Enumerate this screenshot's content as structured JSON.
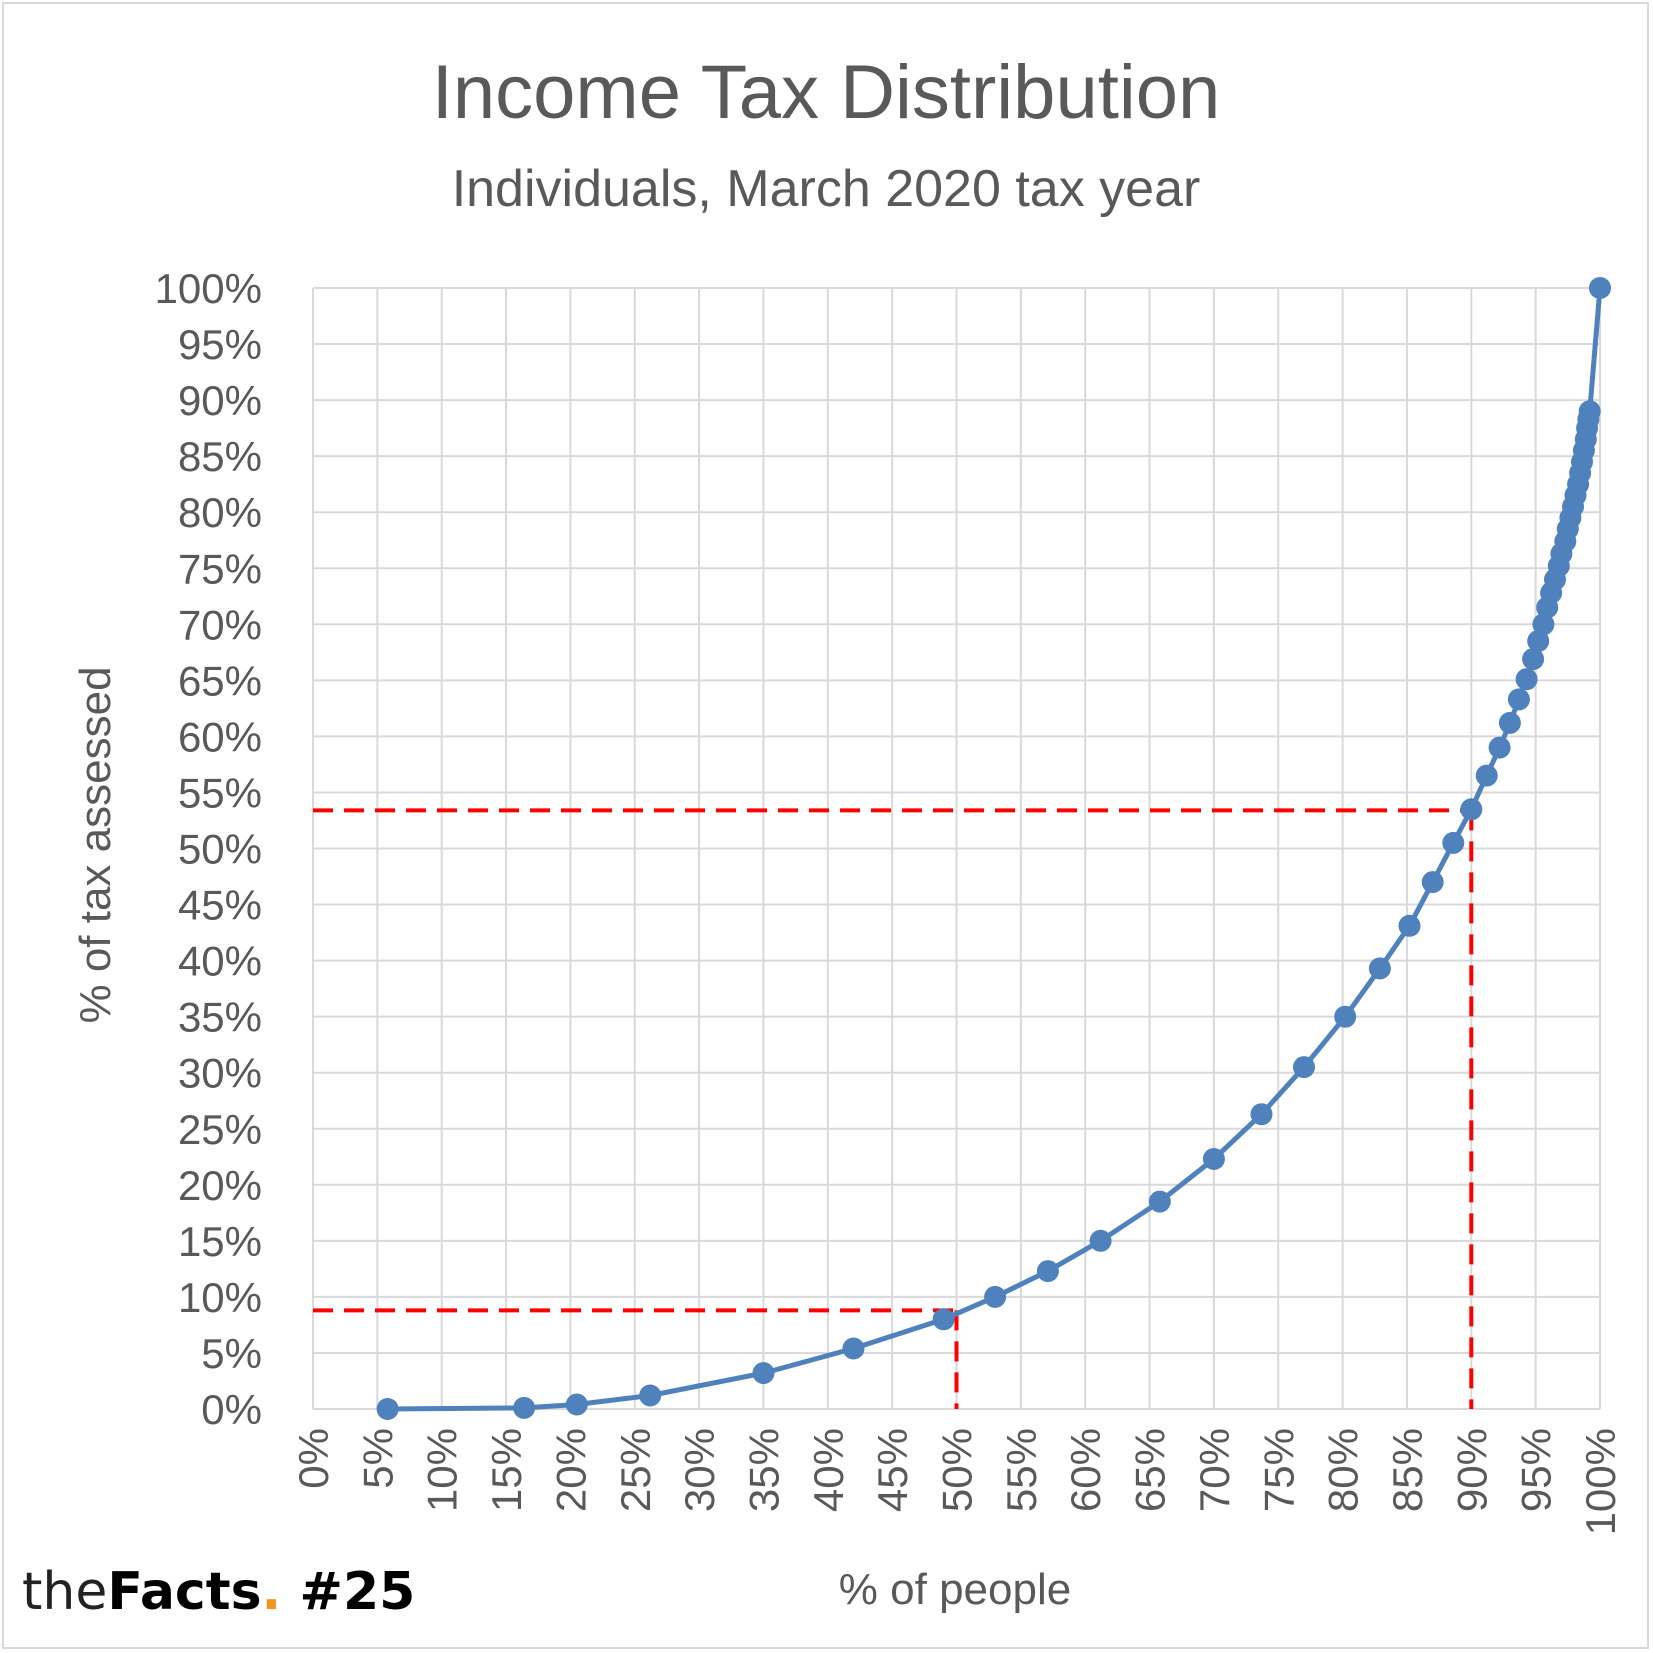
{
  "chart_data": {
    "type": "line",
    "title": "Income Tax Distribution",
    "subtitle": "Individuals, March 2020 tax year",
    "xlabel": "% of people",
    "ylabel": "% of tax assessed",
    "xlim": [
      0,
      100
    ],
    "ylim": [
      0,
      100
    ],
    "x_ticks": [
      "0%",
      "5%",
      "10%",
      "15%",
      "20%",
      "25%",
      "30%",
      "35%",
      "40%",
      "45%",
      "50%",
      "55%",
      "60%",
      "65%",
      "70%",
      "75%",
      "80%",
      "85%",
      "90%",
      "95%",
      "100%"
    ],
    "y_ticks": [
      "0%",
      "5%",
      "10%",
      "15%",
      "20%",
      "25%",
      "30%",
      "35%",
      "40%",
      "45%",
      "50%",
      "55%",
      "60%",
      "65%",
      "70%",
      "75%",
      "80%",
      "85%",
      "90%",
      "95%",
      "100%"
    ],
    "grid": true,
    "series": [
      {
        "color": "#4f81bd",
        "points": [
          [
            5.8,
            0.0
          ],
          [
            16.4,
            0.1
          ],
          [
            20.5,
            0.4
          ],
          [
            26.2,
            1.2
          ],
          [
            35.0,
            3.2
          ],
          [
            42.0,
            5.4
          ],
          [
            49.0,
            8.0
          ],
          [
            53.0,
            10.0
          ],
          [
            57.1,
            12.3
          ],
          [
            61.2,
            15.0
          ],
          [
            65.8,
            18.5
          ],
          [
            70.0,
            22.3
          ],
          [
            73.7,
            26.3
          ],
          [
            77.0,
            30.5
          ],
          [
            80.2,
            35.0
          ],
          [
            82.9,
            39.3
          ],
          [
            85.2,
            43.1
          ],
          [
            87.0,
            47.0
          ],
          [
            88.6,
            50.5
          ],
          [
            90.0,
            53.5
          ],
          [
            91.2,
            56.5
          ],
          [
            92.2,
            59.0
          ],
          [
            93.0,
            61.2
          ],
          [
            93.7,
            63.3
          ],
          [
            94.3,
            65.1
          ],
          [
            94.8,
            66.9
          ],
          [
            95.2,
            68.5
          ],
          [
            95.6,
            70.0
          ],
          [
            95.9,
            71.5
          ],
          [
            96.2,
            72.8
          ],
          [
            96.5,
            74.0
          ],
          [
            96.8,
            75.2
          ],
          [
            97.0,
            76.3
          ],
          [
            97.3,
            77.4
          ],
          [
            97.5,
            78.5
          ],
          [
            97.7,
            79.5
          ],
          [
            97.9,
            80.5
          ],
          [
            98.1,
            81.5
          ],
          [
            98.3,
            82.5
          ],
          [
            98.45,
            83.5
          ],
          [
            98.6,
            84.5
          ],
          [
            98.75,
            85.5
          ],
          [
            98.9,
            86.5
          ],
          [
            99.0,
            87.5
          ],
          [
            99.1,
            88.3
          ],
          [
            99.2,
            89.0
          ],
          [
            100.0,
            100.0
          ]
        ]
      }
    ],
    "reference_lines": [
      {
        "color": "#ff0000",
        "style": "dashed",
        "x": 50,
        "y": 8.8
      },
      {
        "color": "#ff0000",
        "style": "dashed",
        "x": 90,
        "y": 53.4
      }
    ]
  },
  "branding": {
    "prefix": "the",
    "name": "Facts",
    "dot": ".",
    "number": " #25",
    "accent_color": "#f0961e"
  }
}
